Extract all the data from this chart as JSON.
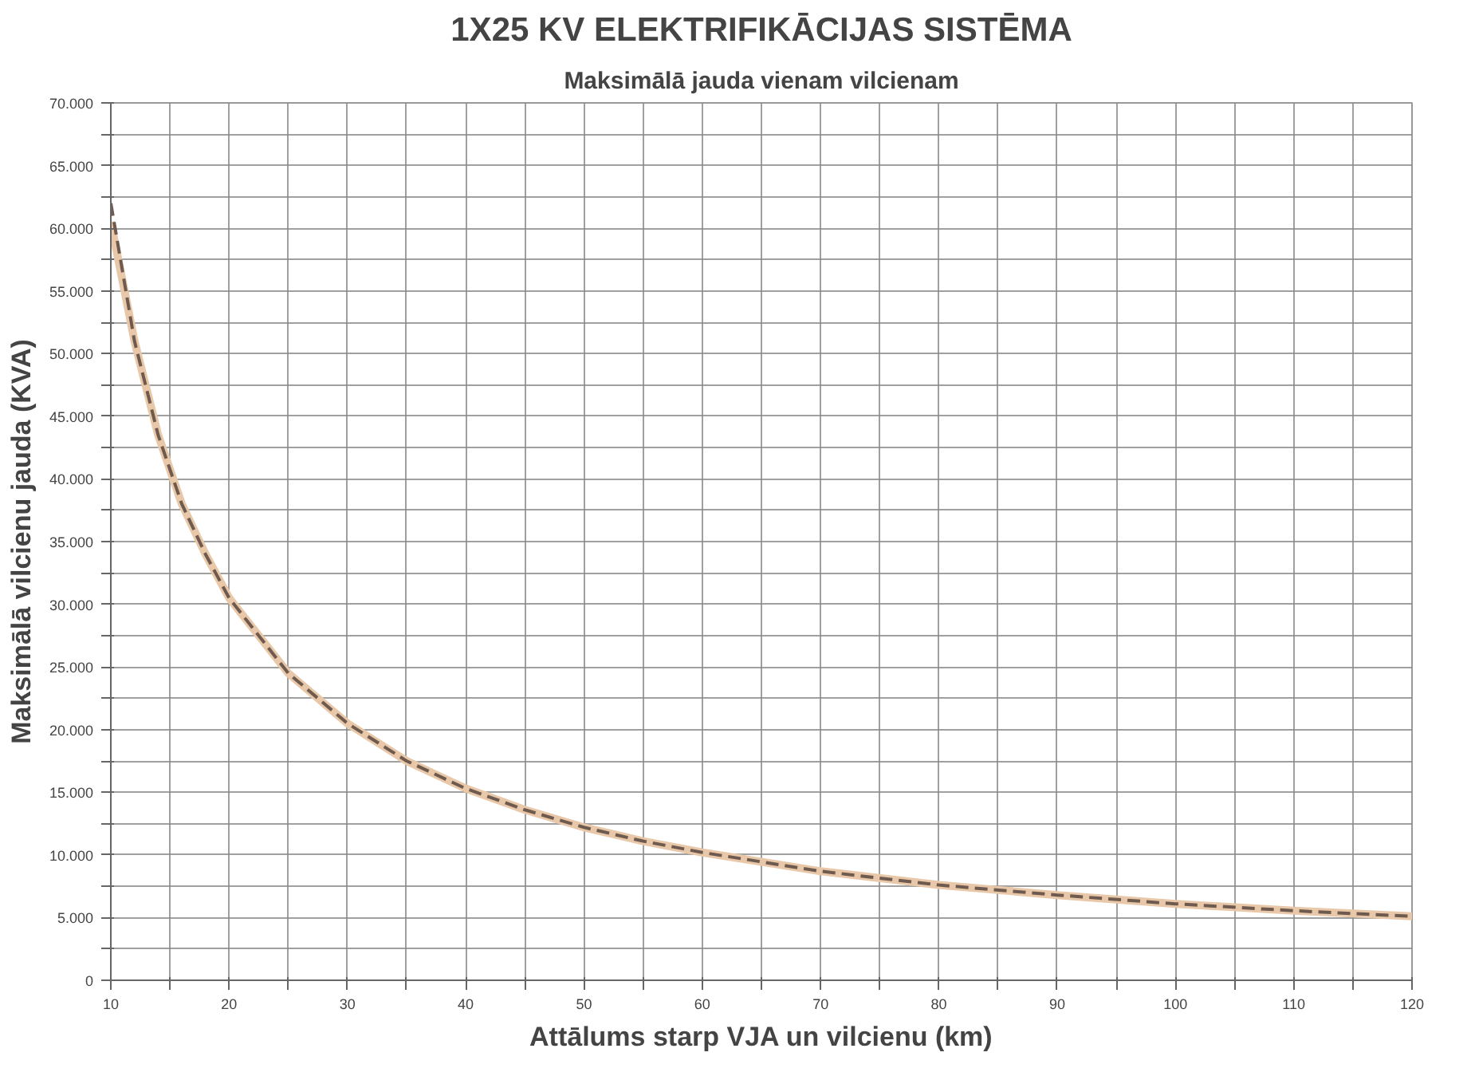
{
  "chart_data": {
    "type": "line",
    "title": "1X25 KV ELEKTRIFIKĀCIJAS SISTĒMA",
    "subtitle": "Maksimālā jauda vienam vilcienam",
    "xlabel": "Attālums starp VJA un vilcienu (km)",
    "ylabel": "Maksimālā vilcienu jauda (KVA)",
    "x": [
      10,
      12,
      14,
      16,
      18,
      20,
      25,
      30,
      35,
      40,
      45,
      50,
      55,
      60,
      70,
      80,
      90,
      100,
      110,
      120
    ],
    "series": [
      {
        "color": "#e8c8a8",
        "line_style": "solid",
        "values": [
          60500,
          51000,
          43500,
          38000,
          34000,
          30500,
          24500,
          20500,
          17500,
          15300,
          13600,
          12200,
          11100,
          10200,
          8700,
          7600,
          6800,
          6100,
          5550,
          5100
        ]
      },
      {
        "color": "#6e5a4e",
        "line_style": "dashed",
        "values": [
          62000,
          51000,
          43500,
          38000,
          34000,
          30500,
          24500,
          20500,
          17500,
          15300,
          13600,
          12200,
          11100,
          10200,
          8700,
          7600,
          6800,
          6100,
          5550,
          5100
        ]
      }
    ],
    "xlim": [
      10,
      120
    ],
    "ylim": [
      0,
      70000
    ],
    "xticks": [
      10,
      {
        "value": 15,
        "label": null
      },
      20,
      {
        "value": 25,
        "label": null
      },
      30,
      {
        "value": 35,
        "label": null
      },
      40,
      {
        "value": 45,
        "label": null
      },
      50,
      {
        "value": 55,
        "label": null
      },
      60,
      {
        "value": 65,
        "label": null
      },
      70,
      {
        "value": 75,
        "label": null
      },
      80,
      {
        "value": 85,
        "label": null
      },
      90,
      {
        "value": 95,
        "label": null
      },
      100,
      {
        "value": 105,
        "label": null
      },
      110,
      {
        "value": 115,
        "label": null
      },
      120
    ],
    "yticks": [
      {
        "value": 0,
        "label": "0"
      },
      {
        "value": 2500,
        "label": null
      },
      {
        "value": 5000,
        "label": "5.000"
      },
      {
        "value": 7500,
        "label": null
      },
      {
        "value": 10000,
        "label": "10.000"
      },
      {
        "value": 12500,
        "label": null
      },
      {
        "value": 15000,
        "label": "15.000"
      },
      {
        "value": 17500,
        "label": null
      },
      {
        "value": 20000,
        "label": "20.000"
      },
      {
        "value": 22500,
        "label": null
      },
      {
        "value": 25000,
        "label": "25.000"
      },
      {
        "value": 27500,
        "label": null
      },
      {
        "value": 30000,
        "label": "30.000"
      },
      {
        "value": 32500,
        "label": null
      },
      {
        "value": 35000,
        "label": "35.000"
      },
      {
        "value": 37500,
        "label": null
      },
      {
        "value": 40000,
        "label": "40.000"
      },
      {
        "value": 42500,
        "label": null
      },
      {
        "value": 45000,
        "label": "45.000"
      },
      {
        "value": 47500,
        "label": null
      },
      {
        "value": 50000,
        "label": "50.000"
      },
      {
        "value": 52500,
        "label": null
      },
      {
        "value": 55000,
        "label": "55.000"
      },
      {
        "value": 57500,
        "label": null
      },
      {
        "value": 60000,
        "label": "60.000"
      },
      {
        "value": 62500,
        "label": null
      },
      {
        "value": 65000,
        "label": "65.000"
      },
      {
        "value": 67500,
        "label": null
      },
      {
        "value": 70000,
        "label": "70.000"
      }
    ],
    "grid": true,
    "marker": "none"
  }
}
